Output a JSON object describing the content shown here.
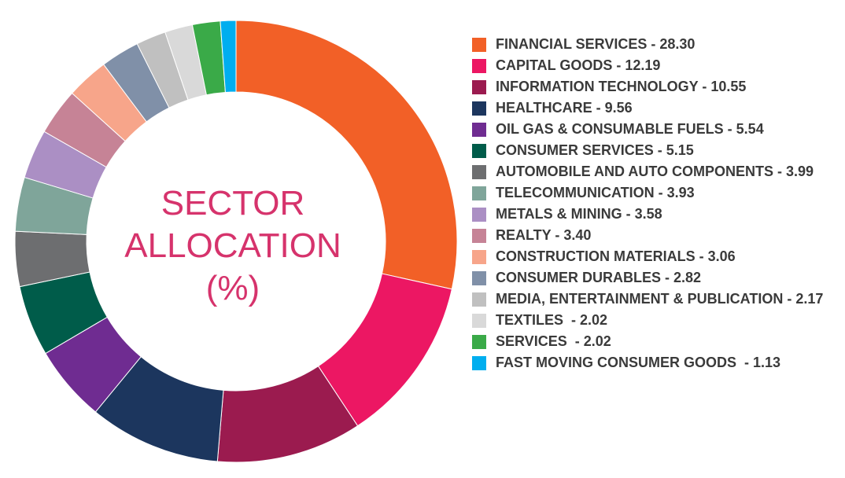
{
  "chart_data": {
    "type": "pie",
    "title": "SECTOR ALLOCATION (%)",
    "categories": [
      "FINANCIAL SERVICES - 28.30",
      "CAPITAL GOODS - 12.19",
      "INFORMATION TECHNOLOGY - 10.55",
      "HEALTHCARE - 9.56",
      "OIL GAS & CONSUMABLE FUELS - 5.54",
      "CONSUMER SERVICES - 5.15",
      "AUTOMOBILE AND AUTO COMPONENTS - 3.99",
      "TELECOMMUNICATION - 3.93",
      "METALS & MINING - 3.58",
      "REALTY - 3.40",
      "CONSTRUCTION MATERIALS - 3.06",
      "CONSUMER DURABLES - 2.82",
      "MEDIA, ENTERTAINMENT & PUBLICATION - 2.17",
      "TEXTILES  - 2.02",
      "SERVICES  - 2.02",
      "FAST MOVING CONSUMER GOODS  - 1.13"
    ],
    "values": [
      28.3,
      12.19,
      10.55,
      9.56,
      5.54,
      5.15,
      3.99,
      3.93,
      3.58,
      3.4,
      3.06,
      2.82,
      2.17,
      2.02,
      2.02,
      1.13
    ],
    "colors": [
      "#f26027",
      "#ec1763",
      "#9b1b4f",
      "#1c365e",
      "#6f2c91",
      "#005c4a",
      "#6d6e70",
      "#7fa59a",
      "#ab8fc4",
      "#c68396",
      "#f7a58a",
      "#8090a8",
      "#c0c0c0",
      "#d9d9d9",
      "#3aaa48",
      "#00aeef"
    ],
    "donut": true
  }
}
